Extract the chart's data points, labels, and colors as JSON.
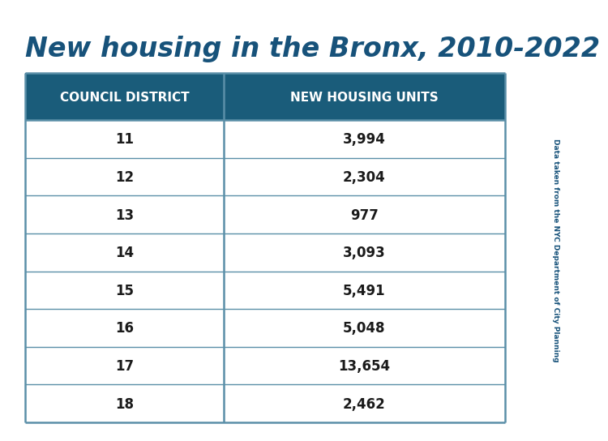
{
  "title": "New housing in the Bronx, 2010-2022",
  "title_color": "#17527a",
  "title_fontsize": 24,
  "header_bg_color": "#1a5c7a",
  "header_text_color": "#ffffff",
  "col1_header": "COUNCIL DISTRICT",
  "col2_header": "NEW HOUSING UNITS",
  "row_text_color": "#1a1a1a",
  "border_color": "#5a8fa8",
  "rows": [
    [
      "11",
      "3,994"
    ],
    [
      "12",
      "2,304"
    ],
    [
      "13",
      "977"
    ],
    [
      "14",
      "3,093"
    ],
    [
      "15",
      "5,491"
    ],
    [
      "16",
      "5,048"
    ],
    [
      "17",
      "13,654"
    ],
    [
      "18",
      "2,462"
    ]
  ],
  "side_label": "Data taken from the NYC Department of City Planning",
  "side_label_color": "#17527a",
  "background_color": "#ffffff",
  "cell_fontsize": 12,
  "header_fontsize": 11
}
